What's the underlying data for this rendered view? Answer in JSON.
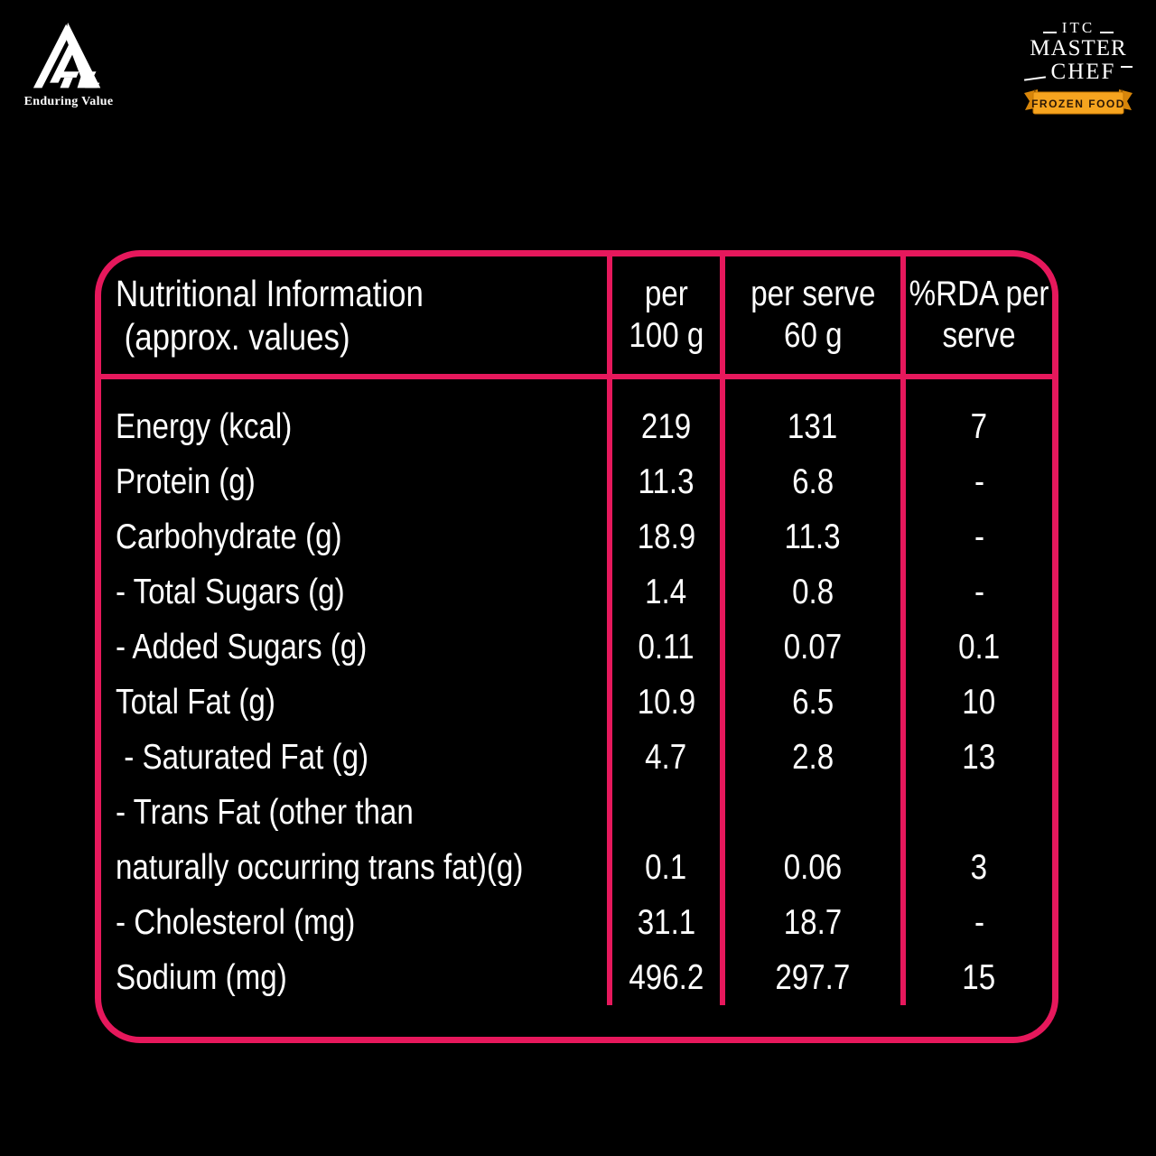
{
  "colors": {
    "pink": "#e6185c",
    "ribbon_orange": "#f6a41f",
    "ribbon_dark": "#d8860a",
    "ribbon_fold": "#7c4c03",
    "ribbon_text": "#2a1605"
  },
  "branding": {
    "itc": {
      "tagline": "Enduring Value"
    },
    "master_chef": {
      "top": "ITC",
      "middle": "MASTER",
      "bottom": "CHEF",
      "banner": "FROZEN FOOD"
    }
  },
  "table": {
    "title": "Nutritional Information\n (approx. values)",
    "columns": [
      {
        "text": "per\n100 g"
      },
      {
        "text": "per serve\n60 g"
      },
      {
        "text": "%RDA per\nserve"
      }
    ],
    "rows": [
      {
        "label": "Energy (kcal)",
        "per100": "219",
        "per_serve": "131",
        "rda": "7"
      },
      {
        "label": "Protein (g)",
        "per100": "11.3",
        "per_serve": "6.8",
        "rda": "-"
      },
      {
        "label": "Carbohydrate (g)",
        "per100": "18.9",
        "per_serve": "11.3",
        "rda": "-"
      },
      {
        "label": "- Total Sugars (g)",
        "per100": "1.4",
        "per_serve": "0.8",
        "rda": "-"
      },
      {
        "label": "- Added Sugars (g)",
        "per100": "0.11",
        "per_serve": "0.07",
        "rda": "0.1"
      },
      {
        "label": "Total Fat (g)",
        "per100": "10.9",
        "per_serve": "6.5",
        "rda": "10"
      },
      {
        "label": " - Saturated Fat (g)",
        "per100": "4.7",
        "per_serve": "2.8",
        "rda": "13"
      },
      {
        "label": "- Trans Fat (other than",
        "per100": "",
        "per_serve": "",
        "rda": ""
      },
      {
        "label": "naturally occurring trans fat)(g)",
        "per100": "0.1",
        "per_serve": "0.06",
        "rda": "3"
      },
      {
        "label": "- Cholesterol (mg)",
        "per100": "31.1",
        "per_serve": "18.7",
        "rda": "-"
      },
      {
        "label": "Sodium (mg)",
        "per100": "496.2",
        "per_serve": "297.7",
        "rda": "15"
      }
    ]
  }
}
